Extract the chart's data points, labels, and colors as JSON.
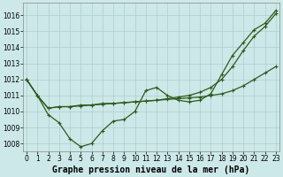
{
  "xlabel": "Graphe pression niveau de la mer (hPa)",
  "bg_color": "#cde8e8",
  "grid_color": "#b0cccc",
  "line_color": "#2d5a1b",
  "x_ticks": [
    0,
    1,
    2,
    3,
    4,
    5,
    6,
    7,
    8,
    9,
    10,
    11,
    12,
    13,
    14,
    15,
    16,
    17,
    18,
    19,
    20,
    21,
    22,
    23
  ],
  "y_ticks": [
    1008,
    1009,
    1010,
    1011,
    1012,
    1013,
    1014,
    1015,
    1016
  ],
  "ylim": [
    1007.5,
    1016.8
  ],
  "xlim": [
    -0.3,
    23.3
  ],
  "line1": [
    1012.0,
    1011.0,
    1009.8,
    1009.3,
    1008.3,
    1007.8,
    1008.0,
    1008.8,
    1009.4,
    1009.5,
    1010.0,
    1011.3,
    1011.5,
    1011.0,
    1010.7,
    1010.6,
    1010.7,
    1011.1,
    1012.3,
    1013.5,
    1014.3,
    1015.1,
    1015.5,
    1016.3
  ],
  "line2": [
    1012.0,
    1011.0,
    1010.2,
    1010.3,
    1010.3,
    1010.4,
    1010.4,
    1010.5,
    1010.5,
    1010.55,
    1010.6,
    1010.65,
    1010.7,
    1010.75,
    1010.8,
    1010.85,
    1010.9,
    1011.0,
    1011.1,
    1011.3,
    1011.6,
    1012.0,
    1012.4,
    1012.8
  ],
  "line3": [
    1012.0,
    1011.0,
    1010.2,
    1010.3,
    1010.3,
    1010.35,
    1010.4,
    1010.45,
    1010.5,
    1010.55,
    1010.6,
    1010.65,
    1010.7,
    1010.8,
    1010.9,
    1011.0,
    1011.2,
    1011.5,
    1012.0,
    1012.8,
    1013.8,
    1014.7,
    1015.3,
    1016.1
  ],
  "marker": "+",
  "markersize": 3,
  "linewidth": 0.9,
  "xlabel_fontsize": 7,
  "tick_fontsize": 5.5
}
